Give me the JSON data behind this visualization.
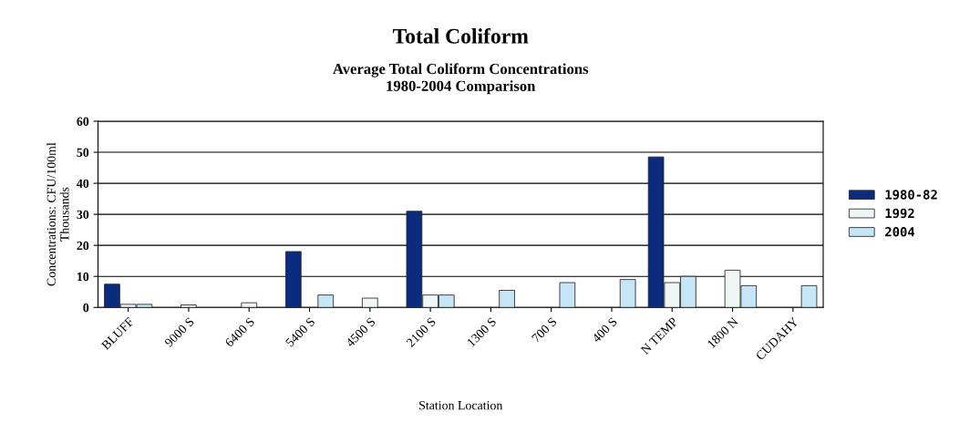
{
  "chart_data": {
    "type": "bar",
    "title": "Total Coliform",
    "subtitle": "Average Total Coliform Concentrations\n1980-2004 Comparison",
    "xlabel": "Station Location",
    "ylabel": "Concentrations: CFU/100ml\nThousands",
    "categories": [
      "BLUFF",
      "9000 S",
      "6400 S",
      "5400 S",
      "4500 S",
      "2100 S",
      "1300 S",
      "700 S",
      "400 S",
      "N TEMP",
      "1800 N",
      "CUDAHY"
    ],
    "series": [
      {
        "name": "1980-82",
        "color": "#0b2c7e",
        "values": [
          7.5,
          null,
          null,
          18,
          null,
          31,
          null,
          null,
          null,
          48.5,
          null,
          null
        ]
      },
      {
        "name": "1992",
        "color": "#eef6f6",
        "values": [
          1,
          0.8,
          1.5,
          null,
          3,
          4,
          null,
          null,
          null,
          8,
          12,
          null
        ]
      },
      {
        "name": "2004",
        "color": "#c6e6f8",
        "values": [
          1,
          null,
          null,
          4,
          null,
          4,
          5.5,
          8,
          9,
          10,
          7,
          7
        ]
      }
    ],
    "ylim": [
      0,
      60
    ],
    "yticks": [
      0,
      10,
      20,
      30,
      40,
      50,
      60
    ],
    "grid": "y",
    "legend": "right"
  }
}
